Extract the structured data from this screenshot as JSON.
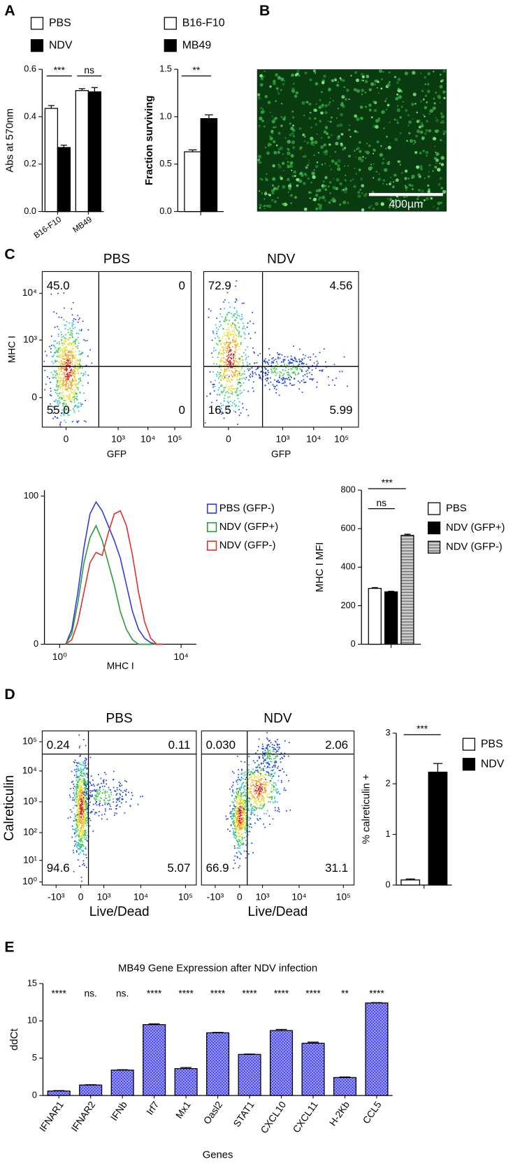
{
  "panel_labels": [
    "A",
    "B",
    "C",
    "D",
    "E"
  ],
  "panel_b": {
    "scale_bar_label": "400µm"
  },
  "chart_data": [
    {
      "type": "bar",
      "ylabel": "Abs at 570nm",
      "categories": [
        "B16-F10",
        "MB49"
      ],
      "series": [
        {
          "name": "PBS",
          "color": "#ffffff",
          "values": [
            0.435,
            0.51
          ],
          "errors": [
            0.012,
            0.008
          ]
        },
        {
          "name": "NDV",
          "color": "#000000",
          "values": [
            0.27,
            0.505
          ],
          "errors": [
            0.01,
            0.018
          ]
        }
      ],
      "ylim": [
        0,
        0.6
      ],
      "yticks": [
        {
          "value": 0,
          "label": "0.0"
        },
        0.2,
        0.4,
        0.6
      ],
      "annotations": [
        "***",
        "ns"
      ]
    },
    {
      "type": "bar",
      "ylabel": "Fraction surviving",
      "categories": [
        null
      ],
      "series": [
        {
          "name": "B16-F10",
          "color": "#ffffff",
          "values": [
            0.63
          ],
          "errors": [
            0.02
          ]
        },
        {
          "name": "MB49",
          "color": "#000000",
          "values": [
            0.98
          ],
          "errors": [
            0.04
          ]
        }
      ],
      "ylim": [
        0,
        1.5
      ],
      "yticks": [
        {
          "value": 0,
          "label": "0.0"
        },
        0.5,
        {
          "value": 1,
          "label": "1.0"
        },
        1.5
      ],
      "annotations": [
        "**"
      ]
    },
    {
      "type": "flow",
      "title": "PBS",
      "xlabel": "GFP",
      "ylabel": "MHC I",
      "xtick_labels": [
        "0",
        "10³",
        "10⁴",
        "10⁵"
      ],
      "ytick_labels": [
        "0",
        "10³",
        "10⁴"
      ],
      "quadrants": [
        "45.0",
        "0",
        "55.0",
        "0"
      ]
    },
    {
      "type": "flow",
      "title": "NDV",
      "xlabel": "GFP",
      "xtick_labels": [
        "0",
        "10³",
        "10⁴",
        "10⁵"
      ],
      "quadrants": [
        "72.9",
        "4.56",
        "16.5",
        "5.99"
      ]
    },
    {
      "type": "line",
      "xlabel": "MHC I",
      "x": [
        0.2,
        0.4,
        0.6,
        0.8,
        1.0,
        1.2,
        1.4,
        1.6,
        1.8,
        2.0,
        2.2,
        2.4,
        2.6,
        2.8,
        3.0,
        3.2,
        3.4
      ],
      "series": [
        {
          "name": "PBS (GFP-)",
          "color": "#2b3be0",
          "values": [
            0,
            10,
            35,
            65,
            88,
            96,
            90,
            80,
            70,
            58,
            40,
            22,
            10,
            4,
            1,
            0,
            0
          ]
        },
        {
          "name": "NDV (GFP+)",
          "color": "#2a9a3a",
          "values": [
            0,
            7,
            28,
            55,
            72,
            80,
            70,
            55,
            40,
            22,
            10,
            3,
            0,
            0,
            0,
            0,
            0
          ]
        },
        {
          "name": "NDV (GFP-)",
          "color": "#e0302a",
          "values": [
            0,
            3,
            15,
            35,
            55,
            62,
            60,
            75,
            88,
            90,
            80,
            60,
            35,
            15,
            4,
            0,
            0
          ]
        }
      ],
      "xlim": [
        -0.5,
        4.5
      ],
      "xticks": [
        {
          "value": 0,
          "label": "10⁰"
        },
        {
          "value": 4,
          "label": "10⁴"
        }
      ],
      "ylim": [
        0,
        104
      ],
      "yticks": [
        0,
        100
      ]
    },
    {
      "type": "bar",
      "ylabel": "MHC I MFI",
      "categories": [
        null
      ],
      "series": [
        {
          "name": "PBS",
          "color": "#ffffff",
          "values": [
            290
          ],
          "errors": [
            4
          ]
        },
        {
          "name": "NDV (GFP+)",
          "color": "#000000",
          "values": [
            272
          ],
          "errors": [
            3
          ]
        },
        {
          "name": "NDV (GFP-)",
          "color": "#cccccc",
          "pattern": "horizontal",
          "values": [
            565
          ],
          "errors": [
            6
          ]
        }
      ],
      "ylim": [
        0,
        800
      ],
      "yticks": [
        0,
        200,
        400,
        600,
        800
      ],
      "annotations": [
        "***",
        "ns"
      ]
    },
    {
      "type": "flow",
      "title": "PBS",
      "xlabel": "Live/Dead",
      "ylabel": "Calreticulin",
      "xtick_labels": [
        "-10³",
        "0",
        "10³",
        "10⁴",
        "10⁵"
      ],
      "ytick_labels": [
        "10⁰",
        "10¹",
        "10²",
        "10³",
        "10⁴",
        "10⁵"
      ],
      "quadrants": [
        "0.24",
        "0.11",
        "94.6",
        "5.07"
      ]
    },
    {
      "type": "flow",
      "title": "NDV",
      "xlabel": "Live/Dead",
      "xtick_labels": [
        "-10³",
        "0",
        "10³",
        "10⁴",
        "10⁵"
      ],
      "quadrants": [
        "0.030",
        "2.06",
        "66.9",
        "31.1"
      ]
    },
    {
      "type": "bar",
      "ylabel": "% calreticulin +",
      "categories": [
        null
      ],
      "series": [
        {
          "name": "PBS",
          "color": "#ffffff",
          "values": [
            0.1
          ],
          "errors": [
            0.02
          ]
        },
        {
          "name": "NDV",
          "color": "#000000",
          "values": [
            2.23
          ],
          "errors": [
            0.17
          ]
        }
      ],
      "ylim": [
        0,
        3
      ],
      "yticks": [
        0,
        1,
        2,
        3
      ],
      "annotations": [
        "***"
      ]
    },
    {
      "type": "bar",
      "title": "MB49 Gene Expression after NDV infection",
      "xlabel": "Genes",
      "ylabel": "ddCt",
      "categories": [
        "IFNAR1",
        "IFNAR2",
        "IFNb",
        "Irf7",
        "Mx1",
        "Oasl2",
        "STAT1",
        "CXCL10",
        "CXCL11",
        "H-2Kb",
        "CCL5"
      ],
      "values": [
        0.6,
        1.4,
        3.4,
        9.5,
        3.6,
        8.4,
        5.5,
        8.7,
        7.0,
        2.4,
        12.4
      ],
      "errors": [
        0.05,
        0.05,
        0.05,
        0.1,
        0.15,
        0.05,
        0.05,
        0.15,
        0.15,
        0.08,
        0.05
      ],
      "color": "#3b3bf0",
      "pattern": "crosshatch",
      "ylim": [
        0,
        15
      ],
      "yticks": [
        0,
        5,
        10,
        15
      ],
      "annotations": [
        "****",
        "ns.",
        "ns.",
        "****",
        "****",
        "****",
        "****",
        "****",
        "****",
        "**",
        "****"
      ]
    }
  ]
}
